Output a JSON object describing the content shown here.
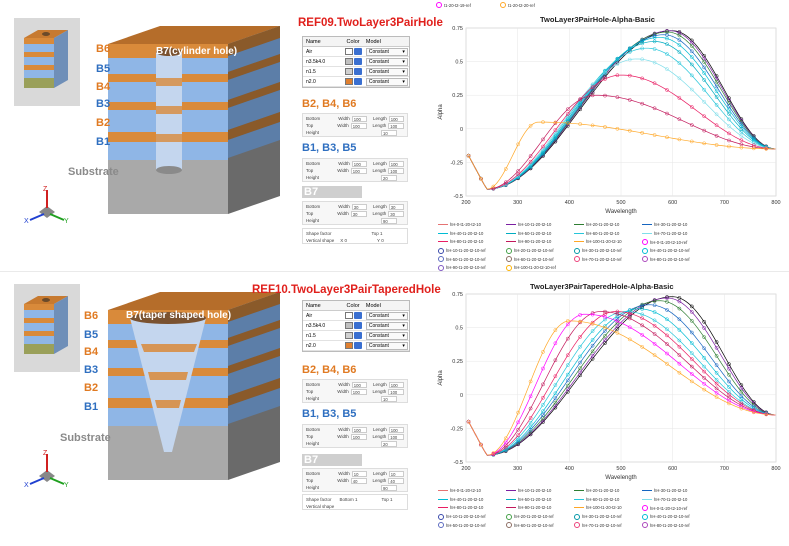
{
  "top_example": {
    "ref_title": "REF09.TwoLayer3PairHole",
    "layer_labels": [
      "B6",
      "B5",
      "B4",
      "B3",
      "B2",
      "B1"
    ],
    "hole_label": "B7(cylinder hole)",
    "substrate_label": "Substrate",
    "axes": {
      "z": "Z",
      "x": "X",
      "y": "Y"
    },
    "material_table": {
      "headers": [
        "Name",
        "Color",
        "Model"
      ],
      "rows": [
        {
          "name": "Air",
          "color": "#ffffff",
          "model": "Constant"
        },
        {
          "name": "n3.5k4.0",
          "color": "#c0c0c0",
          "model": "Constant"
        },
        {
          "name": "n1.5",
          "color": "#d0d0d0",
          "model": "Constant"
        },
        {
          "name": "n2.0",
          "color": "#e08030",
          "model": "Constant"
        }
      ]
    },
    "sections": [
      {
        "title": "B2, B4, B6",
        "rows": [
          [
            "Bottom",
            "Width",
            "100",
            "Length",
            "100"
          ],
          [
            "Top",
            "Width",
            "100",
            "Length",
            "100"
          ],
          [
            "Height",
            "",
            "",
            "",
            "10"
          ]
        ]
      },
      {
        "title": "B1, B3, B5",
        "rows": [
          [
            "Bottom",
            "Width",
            "100",
            "Length",
            "100"
          ],
          [
            "Top",
            "Width",
            "100",
            "Length",
            "100"
          ],
          [
            "Height",
            "",
            "",
            "",
            "20"
          ]
        ]
      },
      {
        "title": "B7",
        "rows": [
          [
            "Bottom",
            "Width",
            "30",
            "Length",
            "30"
          ],
          [
            "Top",
            "Width",
            "30",
            "Length",
            "30"
          ],
          [
            "Height",
            "",
            "",
            "",
            "90"
          ]
        ]
      }
    ],
    "shape_factor": {
      "label1": "Shape factor",
      "label2": "Vertical shape",
      "v1": "Top 1",
      "v2": "X 0",
      "v3": "Y 0"
    },
    "chart_data": {
      "type": "line",
      "title": "TwoLayer3PairHole-Alpha-Basic",
      "xlabel": "Wavelength",
      "ylabel": "Alpha",
      "xlim": [
        200,
        800
      ],
      "ylim": [
        -0.5,
        0.75
      ],
      "xticks": [
        200,
        300,
        400,
        500,
        600,
        700,
        800
      ],
      "yticks": [
        -0.5,
        -0.25,
        0,
        0.25,
        0.5,
        0.75
      ],
      "top_legend": [
        "t1-20-t2-19-ref",
        "t1-20-t2-20-ref"
      ],
      "legend": [
        "hH-0-t1-20-t2-10",
        "hH-10-t1-20-t2-10",
        "hH-20-t1-20-t2-10",
        "hH-30-t1-20-t2-10",
        "hH-40-t1-20-t2-10",
        "hH-50-t1-20-t2-10",
        "hH-60-t1-20-t2-10",
        "hH-70-t1-20-t2-10",
        "hH-80-t1-20-t2-10",
        "hH-90-t1-20-t2-10",
        "hH-100-t1-20-t2-10",
        "hH-0-t1-20-t2-10-ref",
        "hH-10-t1-20-t2-10-ref",
        "hH-20-t1-20-t2-10-ref",
        "hH-30-t1-20-t2-10-ref",
        "hH-40-t1-20-t2-10-ref",
        "hH-50-t1-20-t2-10-ref",
        "hH-60-t1-20-t2-10-ref",
        "hH-70-t1-20-t2-10-ref",
        "hH-80-t1-20-t2-10-ref",
        "hH-90-t1-20-t2-10-ref",
        "hH-100-t1-20-t2-10-ref"
      ],
      "series_peaks": [
        {
          "peak_x": 600,
          "peak_y": 0.73,
          "color": "#000000"
        },
        {
          "peak_x": 595,
          "peak_y": 0.73,
          "color": "#7b1fa2"
        },
        {
          "peak_x": 590,
          "peak_y": 0.72,
          "color": "#2e7d32"
        },
        {
          "peak_x": 583,
          "peak_y": 0.7,
          "color": "#1565c0"
        },
        {
          "peak_x": 575,
          "peak_y": 0.68,
          "color": "#00bcd4"
        },
        {
          "peak_x": 565,
          "peak_y": 0.65,
          "color": "#00acc1"
        },
        {
          "peak_x": 550,
          "peak_y": 0.6,
          "color": "#26c6da"
        },
        {
          "peak_x": 530,
          "peak_y": 0.52,
          "color": "#80deea"
        },
        {
          "peak_x": 500,
          "peak_y": 0.4,
          "color": "#e91e63"
        },
        {
          "peak_x": 450,
          "peak_y": 0.25,
          "color": "#c2185b"
        },
        {
          "peak_x": 340,
          "peak_y": 0.05,
          "color": "#ffa726"
        }
      ]
    }
  },
  "bottom_example": {
    "ref_title": "REF10.TwoLayer3PairTaperedHole",
    "layer_labels": [
      "B6",
      "B5",
      "B4",
      "B3",
      "B2",
      "B1"
    ],
    "hole_label": "B7(taper shaped hole)",
    "substrate_label": "Substrate",
    "axes": {
      "z": "Z",
      "x": "X",
      "y": "Y"
    },
    "material_table": {
      "headers": [
        "Name",
        "Color",
        "Model"
      ],
      "rows": [
        {
          "name": "Air",
          "color": "#ffffff",
          "model": "Constant"
        },
        {
          "name": "n3.5k4.0",
          "color": "#c0c0c0",
          "model": "Constant"
        },
        {
          "name": "n1.5",
          "color": "#d0d0d0",
          "model": "Constant"
        },
        {
          "name": "n2.0",
          "color": "#e08030",
          "model": "Constant"
        }
      ]
    },
    "sections": [
      {
        "title": "B2, B4, B6",
        "rows": [
          [
            "Bottom",
            "Width",
            "100",
            "Length",
            "100"
          ],
          [
            "Top",
            "Width",
            "100",
            "Length",
            "100"
          ],
          [
            "Height",
            "",
            "",
            "",
            "10"
          ]
        ]
      },
      {
        "title": "B1, B3, B5",
        "rows": [
          [
            "Bottom",
            "Width",
            "100",
            "Length",
            "100"
          ],
          [
            "Top",
            "Width",
            "100",
            "Length",
            "100"
          ],
          [
            "Height",
            "",
            "",
            "",
            "20"
          ]
        ]
      },
      {
        "title": "B7",
        "rows": [
          [
            "Bottom",
            "Width",
            "10",
            "Length",
            "10"
          ],
          [
            "Top",
            "Width",
            "40",
            "Length",
            "40"
          ],
          [
            "Height",
            "",
            "",
            "",
            "90"
          ]
        ]
      }
    ],
    "shape_factor": {
      "label1": "Shape factor",
      "label2": "Vertical shape",
      "v1": "Bottom 1",
      "v2": "",
      "v3": "Top 1"
    },
    "chart_data": {
      "type": "line",
      "title": "TwoLayer3PairTaperedHole-Alpha-Basic",
      "xlabel": "Wavelength",
      "ylabel": "Alpha",
      "xlim": [
        200,
        800
      ],
      "ylim": [
        -0.5,
        0.75
      ],
      "xticks": [
        200,
        300,
        400,
        500,
        600,
        700,
        800
      ],
      "yticks": [
        -0.5,
        -0.25,
        0,
        0.25,
        0.5,
        0.75
      ],
      "legend": [
        "hH-0-t1-20-t2-10",
        "hH-10-t1-20-t2-10",
        "hH-20-t1-20-t2-10",
        "hH-30-t1-20-t2-10",
        "hH-40-t1-20-t2-10",
        "hH-50-t1-20-t2-10",
        "hH-60-t1-20-t2-10",
        "hH-70-t1-20-t2-10",
        "hH-80-t1-20-t2-10",
        "hH-90-t1-20-t2-10",
        "hH-100-t1-20-t2-10",
        "hH-0-t1-20-t2-10-ref",
        "hH-10-t1-20-t2-10-ref",
        "hH-20-t1-20-t2-10-ref",
        "hH-30-t1-20-t2-10-ref",
        "hH-40-t1-20-t2-10-ref",
        "hH-50-t1-20-t2-10-ref",
        "hH-60-t1-20-t2-10-ref",
        "hH-70-t1-20-t2-10-ref",
        "hH-80-t1-20-t2-10-ref"
      ],
      "series_peaks": [
        {
          "peak_x": 600,
          "peak_y": 0.73,
          "color": "#000000"
        },
        {
          "peak_x": 590,
          "peak_y": 0.72,
          "color": "#7b1fa2"
        },
        {
          "peak_x": 575,
          "peak_y": 0.7,
          "color": "#2e7d32"
        },
        {
          "peak_x": 555,
          "peak_y": 0.67,
          "color": "#1565c0"
        },
        {
          "peak_x": 535,
          "peak_y": 0.64,
          "color": "#00bcd4"
        },
        {
          "peak_x": 510,
          "peak_y": 0.62,
          "color": "#26c6da"
        },
        {
          "peak_x": 490,
          "peak_y": 0.62,
          "color": "#e91e63"
        },
        {
          "peak_x": 460,
          "peak_y": 0.62,
          "color": "#c2185b"
        },
        {
          "peak_x": 430,
          "peak_y": 0.6,
          "color": "#ff00ff"
        },
        {
          "peak_x": 400,
          "peak_y": 0.55,
          "color": "#ffa726"
        }
      ]
    }
  },
  "colors": {
    "blue_layer": "#8fb6e6",
    "orange_layer": "#d98a3a",
    "substrate": "#a9a9a9",
    "ref_red": "#e0201c",
    "label_blue": "#2f6fc0",
    "label_orange": "#e07a22"
  }
}
